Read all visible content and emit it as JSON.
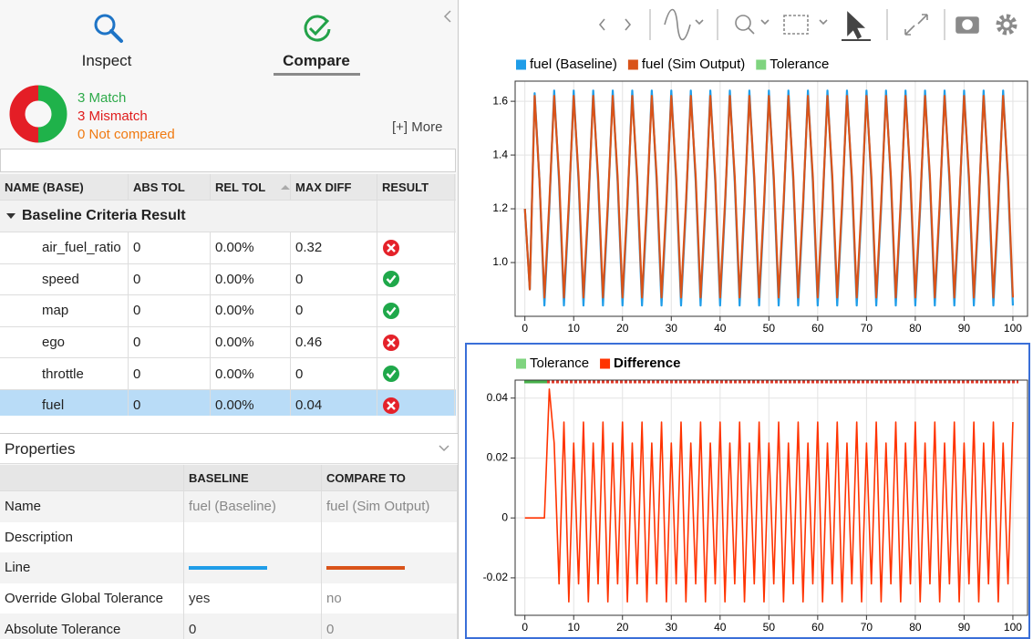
{
  "tabs": [
    "Inspect",
    "Compare"
  ],
  "summary": {
    "match": "3 Match",
    "mismatch": "3 Mismatch",
    "not_compared": "0 Not compared",
    "more": "[+] More"
  },
  "table": {
    "columns": [
      "NAME (BASE)",
      "ABS TOL",
      "REL TOL",
      "MAX DIFF",
      "RESULT"
    ],
    "group": "Baseline Criteria Result",
    "rows": [
      {
        "name": "air_fuel_ratio",
        "abs_tol": "0",
        "rel_tol": "0.00%",
        "max_diff": "0.32",
        "result": "fail"
      },
      {
        "name": "speed",
        "abs_tol": "0",
        "rel_tol": "0.00%",
        "max_diff": "0",
        "result": "pass"
      },
      {
        "name": "map",
        "abs_tol": "0",
        "rel_tol": "0.00%",
        "max_diff": "0",
        "result": "pass"
      },
      {
        "name": "ego",
        "abs_tol": "0",
        "rel_tol": "0.00%",
        "max_diff": "0.46",
        "result": "fail"
      },
      {
        "name": "throttle",
        "abs_tol": "0",
        "rel_tol": "0.00%",
        "max_diff": "0",
        "result": "pass"
      },
      {
        "name": "fuel",
        "abs_tol": "0",
        "rel_tol": "0.00%",
        "max_diff": "0.04",
        "result": "fail",
        "selected": true
      }
    ]
  },
  "properties": {
    "title": "Properties",
    "columns": [
      "BASELINE",
      "COMPARE TO"
    ],
    "rows": [
      {
        "label": "Name",
        "baseline": "fuel (Baseline)",
        "compare": "fuel (Sim Output)"
      },
      {
        "label": "Description"
      },
      {
        "label": "Line",
        "baseline_color": "#1f9de8",
        "compare_color": "#d95319"
      },
      {
        "label": "Override Global Tolerance",
        "baseline": "yes",
        "compare": "no"
      },
      {
        "label": "Absolute Tolerance",
        "baseline": "0",
        "compare": "0"
      }
    ]
  },
  "chart_data": [
    {
      "type": "line",
      "x": [
        0,
        1,
        2,
        3,
        4,
        5,
        6,
        7,
        8,
        9,
        10,
        11,
        12,
        13,
        14,
        15,
        16,
        17,
        18,
        19,
        20,
        21,
        22,
        23,
        24,
        25,
        26,
        27,
        28,
        29,
        30,
        31,
        32,
        33,
        34,
        35,
        36,
        37,
        38,
        39,
        40,
        41,
        42,
        43,
        44,
        45,
        46,
        47,
        48,
        49,
        50,
        51,
        52,
        53,
        54,
        55,
        56,
        57,
        58,
        59,
        60,
        61,
        62,
        63,
        64,
        65,
        66,
        67,
        68,
        69,
        70,
        71,
        72,
        73,
        74,
        75,
        76,
        77,
        78,
        79,
        80,
        81,
        82,
        83,
        84,
        85,
        86,
        87,
        88,
        89,
        90,
        91,
        92,
        93,
        94,
        95,
        96,
        97,
        98,
        99,
        100
      ],
      "series": [
        {
          "name": "fuel (Baseline)",
          "color": "#1f9de8",
          "values": [
            1.2,
            0.9,
            1.63,
            1.3,
            0.84,
            1.2,
            1.64,
            1.3,
            0.84,
            1.2,
            1.64,
            1.3,
            0.84,
            1.2,
            1.64,
            1.3,
            0.84,
            1.2,
            1.64,
            1.3,
            0.84,
            1.2,
            1.64,
            1.3,
            0.84,
            1.2,
            1.64,
            1.3,
            0.84,
            1.2,
            1.64,
            1.3,
            0.84,
            1.2,
            1.64,
            1.3,
            0.84,
            1.2,
            1.64,
            1.3,
            0.84,
            1.2,
            1.64,
            1.3,
            0.84,
            1.2,
            1.64,
            1.3,
            0.84,
            1.2,
            1.64,
            1.3,
            0.84,
            1.2,
            1.64,
            1.3,
            0.84,
            1.2,
            1.64,
            1.3,
            0.84,
            1.2,
            1.64,
            1.3,
            0.84,
            1.2,
            1.64,
            1.3,
            0.84,
            1.2,
            1.64,
            1.3,
            0.84,
            1.2,
            1.64,
            1.3,
            0.84,
            1.2,
            1.64,
            1.3,
            0.84,
            1.2,
            1.64,
            1.3,
            0.84,
            1.2,
            1.64,
            1.3,
            0.84,
            1.2,
            1.64,
            1.3,
            0.84,
            1.2,
            1.64,
            1.3,
            0.84,
            1.2,
            1.64,
            1.3,
            0.84
          ]
        },
        {
          "name": "fuel (Sim Output)",
          "color": "#d95319",
          "values": [
            1.2,
            0.9,
            1.62,
            1.3,
            0.87,
            1.22,
            1.62,
            1.32,
            0.87,
            1.22,
            1.62,
            1.32,
            0.87,
            1.22,
            1.62,
            1.32,
            0.87,
            1.22,
            1.62,
            1.32,
            0.87,
            1.22,
            1.62,
            1.32,
            0.87,
            1.22,
            1.62,
            1.32,
            0.87,
            1.22,
            1.62,
            1.32,
            0.87,
            1.22,
            1.62,
            1.32,
            0.87,
            1.22,
            1.62,
            1.32,
            0.87,
            1.22,
            1.62,
            1.32,
            0.87,
            1.22,
            1.62,
            1.32,
            0.87,
            1.22,
            1.62,
            1.32,
            0.87,
            1.22,
            1.62,
            1.32,
            0.87,
            1.22,
            1.62,
            1.32,
            0.87,
            1.22,
            1.62,
            1.32,
            0.87,
            1.22,
            1.62,
            1.32,
            0.87,
            1.22,
            1.62,
            1.32,
            0.87,
            1.22,
            1.62,
            1.32,
            0.87,
            1.22,
            1.62,
            1.32,
            0.87,
            1.22,
            1.62,
            1.32,
            0.87,
            1.22,
            1.62,
            1.32,
            0.87,
            1.22,
            1.62,
            1.32,
            0.87,
            1.22,
            1.62,
            1.32,
            0.87,
            1.22,
            1.62,
            1.32,
            0.87
          ]
        },
        {
          "name": "Tolerance",
          "color": "#7fd47f"
        }
      ],
      "xlim": [
        -2,
        103
      ],
      "ylim": [
        0.8,
        1.675
      ],
      "xticks": [
        0,
        10,
        20,
        30,
        40,
        50,
        60,
        70,
        80,
        90,
        100
      ],
      "yticks": [
        {
          "value": 1,
          "label": "1.0"
        },
        1.2,
        1.4,
        1.6
      ],
      "grid": true
    },
    {
      "type": "line",
      "x": [
        0,
        1,
        2,
        3,
        4,
        5,
        6,
        7,
        8,
        9,
        10,
        11,
        12,
        13,
        14,
        15,
        16,
        17,
        18,
        19,
        20,
        21,
        22,
        23,
        24,
        25,
        26,
        27,
        28,
        29,
        30,
        31,
        32,
        33,
        34,
        35,
        36,
        37,
        38,
        39,
        40,
        41,
        42,
        43,
        44,
        45,
        46,
        47,
        48,
        49,
        50,
        51,
        52,
        53,
        54,
        55,
        56,
        57,
        58,
        59,
        60,
        61,
        62,
        63,
        64,
        65,
        66,
        67,
        68,
        69,
        70,
        71,
        72,
        73,
        74,
        75,
        76,
        77,
        78,
        79,
        80,
        81,
        82,
        83,
        84,
        85,
        86,
        87,
        88,
        89,
        90,
        91,
        92,
        93,
        94,
        95,
        96,
        97,
        98,
        99,
        100
      ],
      "series": [
        {
          "name": "Tolerance",
          "color": "#7fd47f"
        },
        {
          "name": "Difference",
          "color": "#ff3300",
          "values": [
            0,
            0,
            0,
            0,
            0,
            0.043,
            0.025,
            -0.022,
            0.032,
            -0.028,
            0.025,
            -0.022,
            0.032,
            -0.028,
            0.025,
            -0.022,
            0.032,
            -0.028,
            0.025,
            -0.022,
            0.032,
            -0.028,
            0.025,
            -0.022,
            0.032,
            -0.028,
            0.025,
            -0.022,
            0.032,
            -0.028,
            0.025,
            -0.022,
            0.032,
            -0.028,
            0.025,
            -0.022,
            0.032,
            -0.028,
            0.025,
            -0.022,
            0.032,
            -0.028,
            0.025,
            -0.022,
            0.032,
            -0.028,
            0.025,
            -0.022,
            0.032,
            -0.028,
            0.025,
            -0.022,
            0.032,
            -0.028,
            0.025,
            -0.022,
            0.032,
            -0.028,
            0.025,
            -0.022,
            0.032,
            -0.028,
            0.025,
            -0.022,
            0.032,
            -0.028,
            0.025,
            -0.022,
            0.032,
            -0.028,
            0.025,
            -0.022,
            0.032,
            -0.028,
            0.025,
            -0.022,
            0.032,
            -0.028,
            0.025,
            -0.022,
            0.032,
            -0.028,
            0.025,
            -0.022,
            0.032,
            -0.028,
            0.025,
            -0.022,
            0.032,
            -0.028,
            0.025,
            -0.022,
            0.032,
            -0.028,
            0.025,
            -0.022,
            0.032,
            -0.028,
            0.025,
            -0.022,
            0.032
          ]
        }
      ],
      "xlim": [
        -2,
        103
      ],
      "ylim": [
        -0.0325,
        0.046
      ],
      "xticks": [
        0,
        10,
        20,
        30,
        40,
        50,
        60,
        70,
        80,
        90,
        100
      ],
      "yticks": [
        -0.02,
        0,
        0.02,
        0.04
      ],
      "grid": true
    }
  ]
}
